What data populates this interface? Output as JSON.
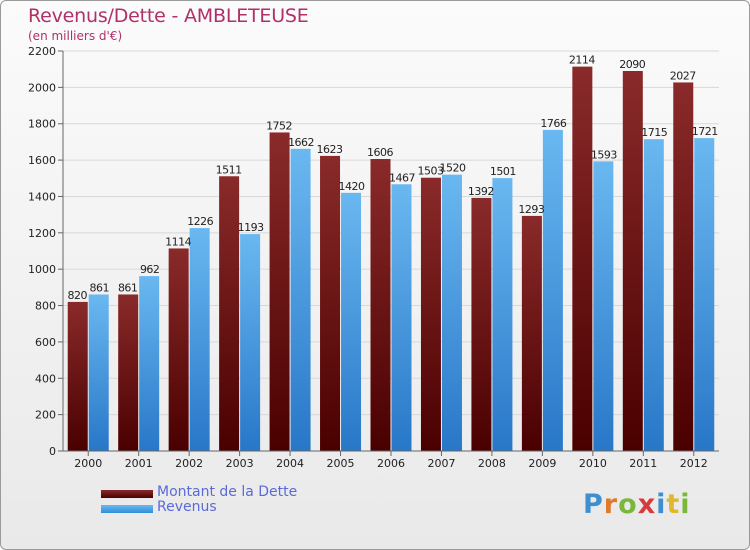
{
  "title": "Revenus/Dette - AMBLETEUSE",
  "subtitle": "(en milliers d'€)",
  "logo": {
    "text": "Proxiti",
    "colors": [
      "#3f8fd0",
      "#e07a2a",
      "#7ab83a",
      "#d63a3a",
      "#3f8fd0",
      "#e0b82a",
      "#7ab83a"
    ]
  },
  "legend": {
    "debt": "Montant de la Dette",
    "revenue": "Revenus"
  },
  "colors": {
    "debt_top": "#8a2a2a",
    "debt_bottom": "#4a0000",
    "rev_top": "#6ab8f0",
    "rev_bottom": "#2877c8",
    "grid": "#d8d8d8",
    "axis": "#666666"
  },
  "chart_data": {
    "type": "bar",
    "categories": [
      "2000",
      "2001",
      "2002",
      "2003",
      "2004",
      "2005",
      "2006",
      "2007",
      "2008",
      "2009",
      "2010",
      "2011",
      "2012"
    ],
    "series": [
      {
        "name": "Montant de la Dette",
        "values": [
          820,
          861,
          1114,
          1511,
          1752,
          1623,
          1606,
          1503,
          1392,
          1293,
          2114,
          2090,
          2027
        ],
        "labels": [
          "820",
          "861",
          "1114",
          "1511",
          "1752",
          "1623",
          "1606",
          "1503",
          "1392",
          "1293",
          "2114",
          "2090",
          "2027"
        ]
      },
      {
        "name": "Revenus",
        "values": [
          861,
          962,
          1226,
          1193,
          1662,
          1420,
          1467,
          1520,
          1501,
          1766,
          1593,
          1715,
          1721
        ],
        "labels": [
          "861",
          "962",
          "1226",
          "1193",
          "1662",
          "1420",
          "1467",
          "1520",
          "1501",
          "1766",
          "1593",
          "1715",
          "1721"
        ]
      }
    ],
    "ylim": [
      0,
      2200
    ],
    "yticks": [
      0,
      200,
      400,
      600,
      800,
      1000,
      1200,
      1400,
      1600,
      1800,
      2000,
      2200
    ],
    "grid": true,
    "legend_position": "bottom-left"
  }
}
